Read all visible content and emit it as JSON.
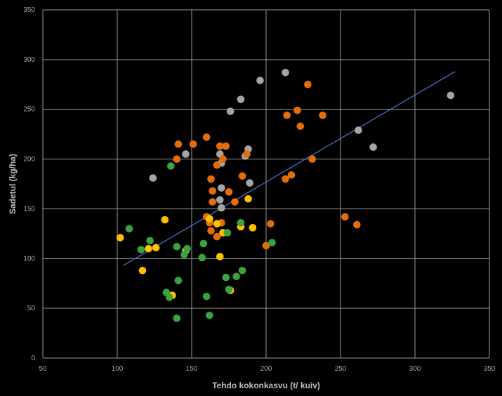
{
  "chart_data": {
    "type": "scatter",
    "title": "",
    "xlabel": "Tehdo kokonkasvu (t/ kuiv)",
    "ylabel": "Sadetul (kg/ha)",
    "xlim": [
      50,
      350
    ],
    "ylim": [
      0,
      350
    ],
    "x_ticks": [
      "50",
      "100",
      "150",
      "200",
      "250",
      "300",
      "350"
    ],
    "y_ticks": [
      "0",
      "50",
      "100",
      "150",
      "200",
      "250",
      "300",
      "350"
    ],
    "grid": true,
    "legend": "none",
    "colors": {
      "background": "#000000",
      "grid": "#9a9a9a",
      "trendline": "#4472c4",
      "gray": "#a5a5a5",
      "orange": "#e46c0a",
      "yellow": "#ffc000",
      "green": "#3aa23f"
    },
    "trendline": {
      "x": [
        104,
        327
      ],
      "y": [
        93,
        288
      ]
    },
    "series": [
      {
        "color": "gray",
        "points": [
          [
            124,
            181
          ],
          [
            146,
            205
          ],
          [
            169,
            205
          ],
          [
            170,
            196
          ],
          [
            170,
            171
          ],
          [
            169,
            159
          ],
          [
            170,
            151
          ],
          [
            176,
            248
          ],
          [
            183,
            260
          ],
          [
            186,
            203
          ],
          [
            188,
            210
          ],
          [
            189,
            176
          ],
          [
            196,
            279
          ],
          [
            213,
            287
          ],
          [
            262,
            229
          ],
          [
            272,
            212
          ],
          [
            324,
            264
          ]
        ]
      },
      {
        "color": "orange",
        "points": [
          [
            140,
            200
          ],
          [
            141,
            215
          ],
          [
            151,
            215
          ],
          [
            160,
            222
          ],
          [
            163,
            180
          ],
          [
            164,
            157
          ],
          [
            167,
            194
          ],
          [
            169,
            213
          ],
          [
            173,
            213
          ],
          [
            171,
            200
          ],
          [
            175,
            167
          ],
          [
            179,
            157
          ],
          [
            184,
            183
          ],
          [
            187,
            205
          ],
          [
            164,
            168
          ],
          [
            160,
            142
          ],
          [
            162,
            136
          ],
          [
            163,
            128
          ],
          [
            167,
            122
          ],
          [
            170,
            136
          ],
          [
            200,
            113
          ],
          [
            203,
            135
          ],
          [
            213,
            180
          ],
          [
            217,
            184
          ],
          [
            214,
            244
          ],
          [
            221,
            249
          ],
          [
            223,
            233
          ],
          [
            228,
            275
          ],
          [
            231,
            200
          ],
          [
            238,
            244
          ],
          [
            253,
            142
          ],
          [
            261,
            134
          ]
        ]
      },
      {
        "color": "yellow",
        "points": [
          [
            102,
            121
          ],
          [
            117,
            88
          ],
          [
            121,
            110
          ],
          [
            126,
            111
          ],
          [
            132,
            139
          ],
          [
            146,
            108
          ],
          [
            162,
            140
          ],
          [
            167,
            135
          ],
          [
            171,
            126
          ],
          [
            169,
            102
          ],
          [
            176,
            68
          ],
          [
            183,
            132
          ],
          [
            188,
            160
          ],
          [
            191,
            131
          ],
          [
            137,
            63
          ]
        ]
      },
      {
        "color": "green",
        "points": [
          [
            108,
            130
          ],
          [
            116,
            109
          ],
          [
            122,
            118
          ],
          [
            133,
            66
          ],
          [
            135,
            61
          ],
          [
            136,
            193
          ],
          [
            140,
            112
          ],
          [
            141,
            78
          ],
          [
            140,
            40
          ],
          [
            145,
            104
          ],
          [
            157,
            101
          ],
          [
            158,
            115
          ],
          [
            160,
            62
          ],
          [
            162,
            43
          ],
          [
            174,
            126
          ],
          [
            173,
            81
          ],
          [
            175,
            69
          ],
          [
            180,
            82
          ],
          [
            183,
            136
          ],
          [
            184,
            88
          ],
          [
            204,
            116
          ],
          [
            147,
            110
          ]
        ]
      }
    ]
  }
}
